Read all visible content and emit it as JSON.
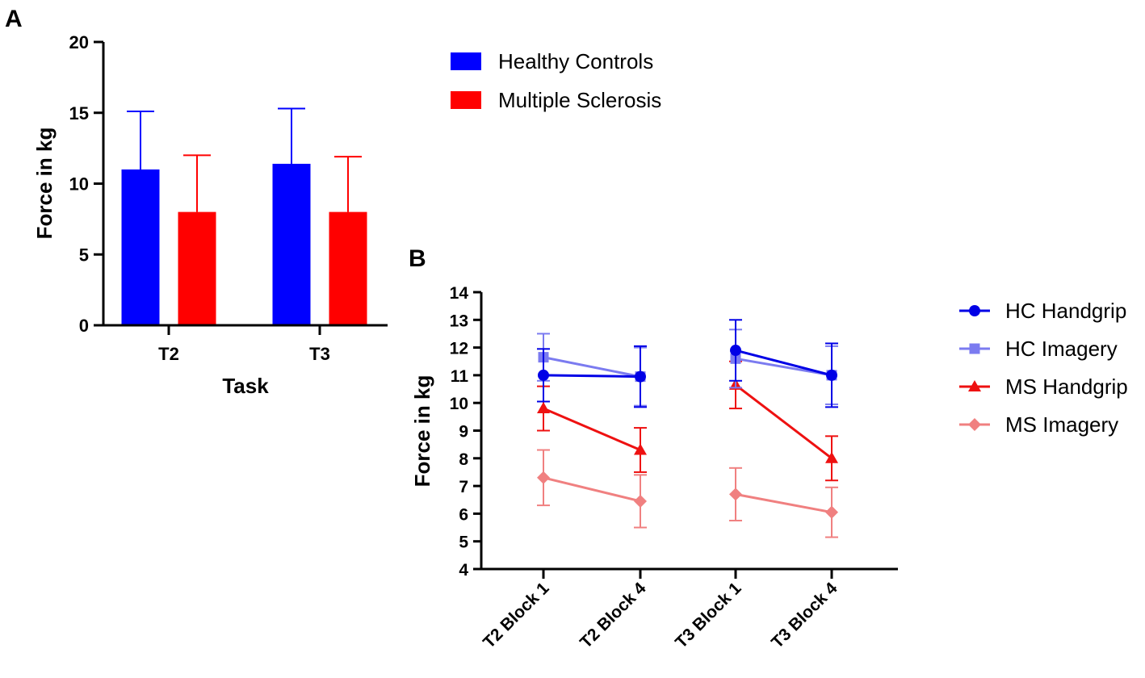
{
  "chart_data": [
    {
      "panel": "A",
      "type": "bar",
      "title": "",
      "xlabel": "Task",
      "ylabel": "Force in kg",
      "ylim": [
        0,
        20
      ],
      "yticks": [
        0,
        5,
        10,
        15,
        20
      ],
      "categories": [
        "T2",
        "T3"
      ],
      "series": [
        {
          "name": "Healthy Controls",
          "color": "#0000ff",
          "values": [
            11.0,
            11.4
          ],
          "errors": [
            4.1,
            3.9
          ]
        },
        {
          "name": "Multiple Sclerosis",
          "color": "#ff0000",
          "values": [
            8.0,
            8.0
          ],
          "errors": [
            4.0,
            3.9
          ]
        }
      ]
    },
    {
      "panel": "B",
      "type": "line",
      "title": "",
      "xlabel": "",
      "ylabel": "Force in kg",
      "ylim": [
        4,
        14
      ],
      "yticks": [
        4,
        5,
        6,
        7,
        8,
        9,
        10,
        11,
        12,
        13,
        14
      ],
      "categories": [
        "T2 Block 1",
        "T2 Block 4",
        "T3 Block 1",
        "T3 Block 4"
      ],
      "series": [
        {
          "name": "HC Handgrip",
          "color": "#0000e6",
          "marker": "circle",
          "groups": [
            [
              11.0,
              10.95
            ],
            [
              11.9,
              11.0
            ]
          ],
          "errors": [
            [
              0.95,
              1.1
            ],
            [
              1.1,
              1.15
            ]
          ]
        },
        {
          "name": "HC Imagery",
          "color": "#7b7bf0",
          "marker": "square",
          "groups": [
            [
              11.65,
              10.95
            ],
            [
              11.6,
              11.0
            ]
          ],
          "errors": [
            [
              0.85,
              1.05
            ],
            [
              1.05,
              1.05
            ]
          ]
        },
        {
          "name": "MS Handgrip",
          "color": "#ee1111",
          "marker": "triangle",
          "groups": [
            [
              9.8,
              8.3
            ],
            [
              10.65,
              8.0
            ]
          ],
          "errors": [
            [
              0.8,
              0.8
            ],
            [
              0.85,
              0.8
            ]
          ]
        },
        {
          "name": "MS Imagery",
          "color": "#f08080",
          "marker": "diamond",
          "groups": [
            [
              7.3,
              6.45
            ],
            [
              6.7,
              6.05
            ]
          ],
          "errors": [
            [
              1.0,
              0.95
            ],
            [
              0.95,
              0.9
            ]
          ]
        }
      ]
    }
  ],
  "panel_labels": {
    "a": "A",
    "b": "B"
  }
}
